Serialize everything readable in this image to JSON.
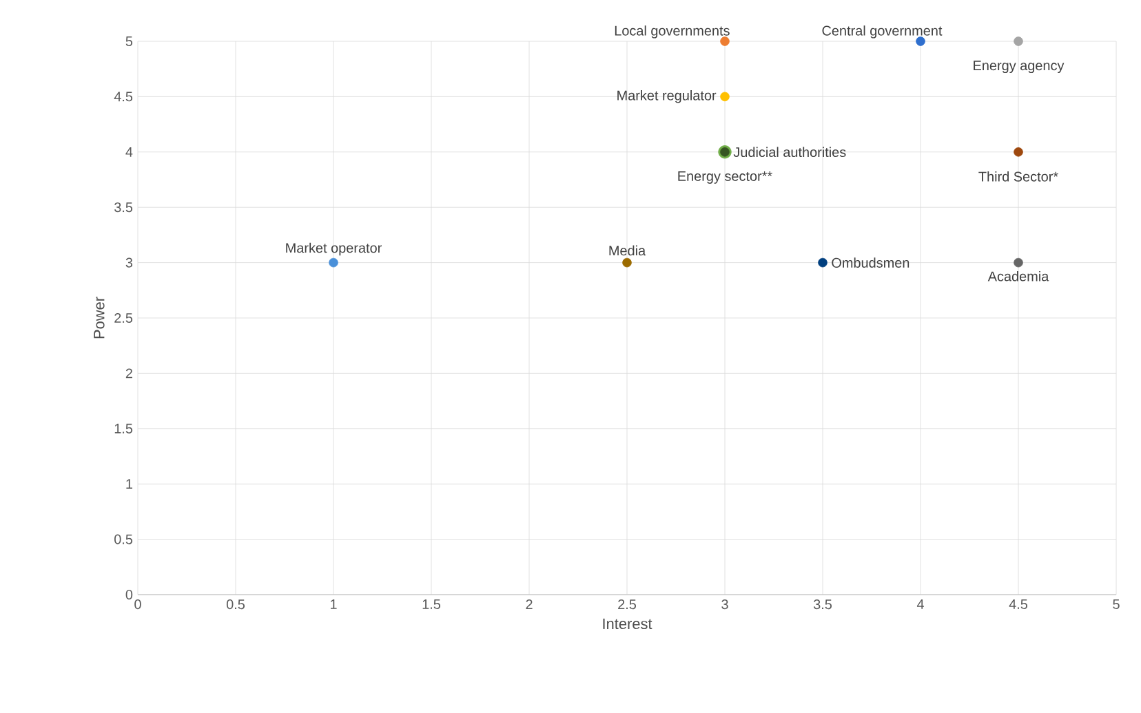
{
  "chart_data": {
    "type": "scatter",
    "xlabel": "Interest",
    "ylabel": "Power",
    "xlim": [
      0,
      5
    ],
    "ylim": [
      0,
      5
    ],
    "xticks": [
      0,
      0.5,
      1,
      1.5,
      2,
      2.5,
      3,
      3.5,
      4,
      4.5,
      5
    ],
    "yticks": [
      0,
      0.5,
      1,
      1.5,
      2,
      2.5,
      3,
      3.5,
      4,
      4.5,
      5
    ],
    "grid": true,
    "marker": "circle",
    "series": [
      {
        "name": "Market operator",
        "color": "#4a90d9",
        "x": [
          1
        ],
        "values": [
          3
        ]
      },
      {
        "name": "Media",
        "color": "#9c6b00",
        "x": [
          2.5
        ],
        "values": [
          3
        ]
      },
      {
        "name": "Ombudsmen",
        "color": "#003f7f",
        "x": [
          3.5
        ],
        "values": [
          3
        ]
      },
      {
        "name": "Academia",
        "color": "#666666",
        "x": [
          4.5
        ],
        "values": [
          3
        ]
      },
      {
        "name": "Energy sector**",
        "color": "#70ad47",
        "x": [
          3
        ],
        "values": [
          4
        ]
      },
      {
        "name": "Judicial authorities",
        "color": "#375623",
        "x": [
          3
        ],
        "values": [
          4
        ]
      },
      {
        "name": "Third Sector*",
        "color": "#9e480e",
        "x": [
          4.5
        ],
        "values": [
          4
        ]
      },
      {
        "name": "Market regulator",
        "color": "#ffc000",
        "x": [
          3
        ],
        "values": [
          4.5
        ]
      },
      {
        "name": "Local governments",
        "color": "#ed7d31",
        "x": [
          3
        ],
        "values": [
          5
        ]
      },
      {
        "name": "Central government",
        "color": "#2f6fce",
        "x": [
          4
        ],
        "values": [
          5
        ]
      },
      {
        "name": "Energy agency",
        "color": "#a5a5a5",
        "x": [
          4.5
        ],
        "values": [
          5
        ]
      }
    ]
  }
}
